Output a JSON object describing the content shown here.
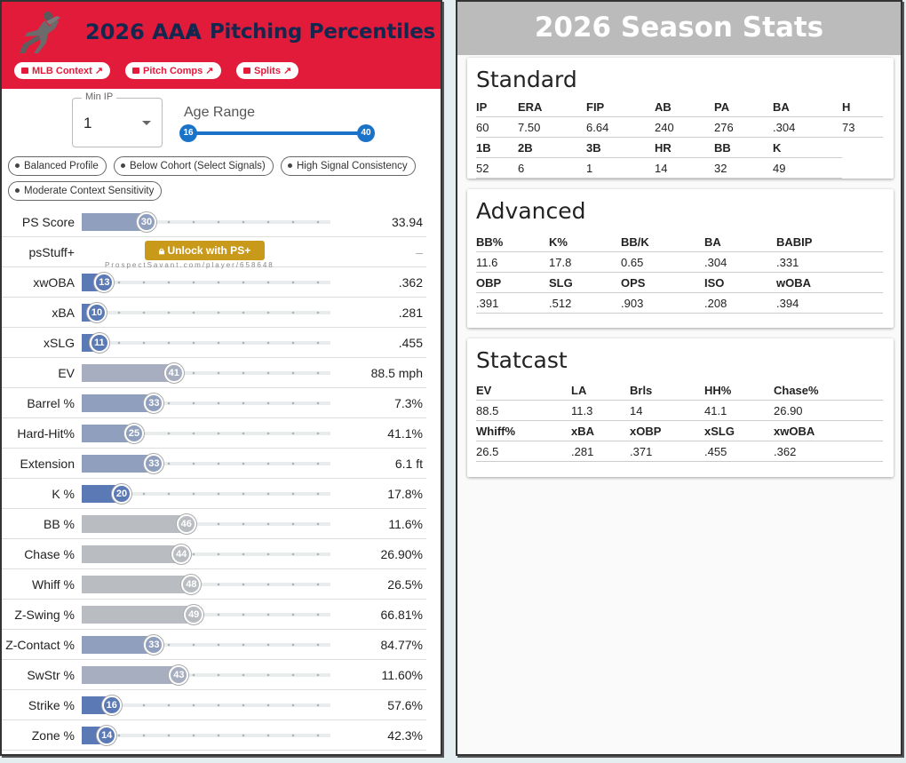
{
  "header": {
    "season": "2026 AAA",
    "title": "Pitching Percentiles",
    "pills": [
      "MLB Context ↗",
      "Pitch Comps ↗",
      "Splits ↗"
    ]
  },
  "filters": {
    "min_ip_label": "Min IP",
    "min_ip_value": "1",
    "age_label": "Age Range",
    "age_min": "16",
    "age_max": "40"
  },
  "chips": [
    "Balanced Profile",
    "Below Cohort (Select Signals)",
    "High Signal Consistency",
    "Moderate Context Sensitivity"
  ],
  "rows": [
    {
      "name": "PS Score",
      "pct": 30,
      "value": "33.94"
    },
    {
      "name": "psStuff+",
      "pct": null,
      "value": "–",
      "locked": true
    },
    {
      "name": "xwOBA",
      "pct": 13,
      "value": ".362"
    },
    {
      "name": "xBA",
      "pct": 10,
      "value": ".281"
    },
    {
      "name": "xSLG",
      "pct": 11,
      "value": ".455"
    },
    {
      "name": "EV",
      "pct": 41,
      "value": "88.5 mph"
    },
    {
      "name": "Barrel %",
      "pct": 33,
      "value": "7.3%"
    },
    {
      "name": "Hard-Hit%",
      "pct": 25,
      "value": "41.1%"
    },
    {
      "name": "Extension",
      "pct": 33,
      "value": "6.1 ft"
    },
    {
      "name": "K %",
      "pct": 20,
      "value": "17.8%"
    },
    {
      "name": "BB %",
      "pct": 46,
      "value": "11.6%"
    },
    {
      "name": "Chase %",
      "pct": 44,
      "value": "26.90%"
    },
    {
      "name": "Whiff %",
      "pct": 48,
      "value": "26.5%"
    },
    {
      "name": "Z-Swing %",
      "pct": 49,
      "value": "66.81%"
    },
    {
      "name": "Z-Contact %",
      "pct": 33,
      "value": "84.77%"
    },
    {
      "name": "SwStr %",
      "pct": 43,
      "value": "11.60%"
    },
    {
      "name": "Strike %",
      "pct": 16,
      "value": "57.6%"
    },
    {
      "name": "Zone %",
      "pct": 14,
      "value": "42.3%"
    }
  ],
  "locked": {
    "button": "Unlock with PS+",
    "watermark": "ProspectSavant.com/player/658648"
  },
  "stats": {
    "title": "2026 Season Stats",
    "standard": {
      "title": "Standard",
      "rows": [
        [
          "IP",
          "ERA",
          "FIP",
          "AB",
          "PA",
          "BA",
          "H"
        ],
        [
          "60",
          "7.50",
          "6.64",
          "240",
          "276",
          ".304",
          "73"
        ],
        [
          "1B",
          "2B",
          "3B",
          "HR",
          "BB",
          "K"
        ],
        [
          "52",
          "6",
          "1",
          "14",
          "32",
          "49"
        ]
      ]
    },
    "advanced": {
      "title": "Advanced",
      "rows": [
        [
          "BB%",
          "K%",
          "BB/K",
          "BA",
          "BABIP"
        ],
        [
          "11.6",
          "17.8",
          "0.65",
          ".304",
          ".331"
        ],
        [
          "OBP",
          "SLG",
          "OPS",
          "ISO",
          "wOBA"
        ],
        [
          ".391",
          ".512",
          ".903",
          ".208",
          ".394"
        ]
      ]
    },
    "statcast": {
      "title": "Statcast",
      "rows": [
        [
          "EV",
          "LA",
          "Brls",
          "HH%",
          "Chase%"
        ],
        [
          "88.5",
          "11.3",
          "14",
          "41.1",
          "26.90"
        ],
        [
          "Whiff%",
          "xBA",
          "xOBP",
          "xSLG",
          "xwOBA"
        ],
        [
          "26.5",
          ".281",
          ".371",
          ".455",
          ".362"
        ]
      ]
    }
  },
  "colors": {
    "brand": "#e31b3b",
    "navy": "#13274f",
    "low": "#5b79b4",
    "mid": "#8f9fbd",
    "neutral": "#b9bcc0",
    "slider": "#1a73c8",
    "gold": "#c99a1a"
  }
}
